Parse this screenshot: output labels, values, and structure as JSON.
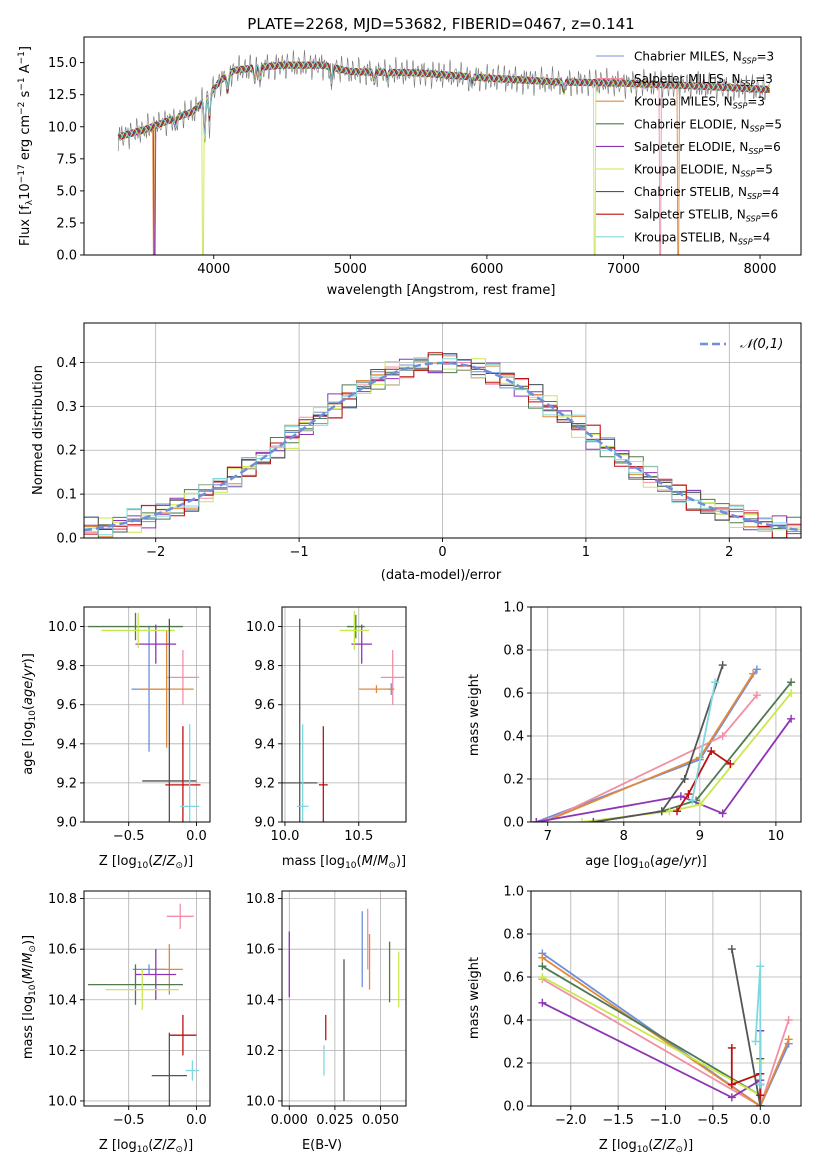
{
  "colors": {
    "Chabrier MILES": "#6f8fdc",
    "Salpeter MILES": "#f28fa5",
    "Kroupa MILES": "#e08a3c",
    "Chabrier ELODIE": "#4f7a4f",
    "Salpeter ELODIE": "#8e35b5",
    "Kroupa ELODIE": "#c9e84e",
    "Chabrier STELIB": "#555555",
    "Salpeter STELIB": "#bb1111",
    "Kroupa STELIB": "#7fd8e0",
    "gauss": "#6f8fdc"
  },
  "chart_data": [
    {
      "id": "spectrum",
      "type": "line",
      "title": "PLATE=2268, MJD=53682, FIBERID=0467, z=0.141",
      "xlabel": "wavelength [Angstrom, rest frame]",
      "ylabel": "Flux [f_λ10^-17 erg cm^-2 s^-1 A^-1]",
      "xlim": [
        3050,
        8300
      ],
      "ylim": [
        0,
        17
      ],
      "xticks": [
        4000,
        5000,
        6000,
        7000,
        8000
      ],
      "yticks": [
        0.0,
        2.5,
        5.0,
        7.5,
        10.0,
        12.5,
        15.0
      ],
      "legend_position": "right",
      "spectrum_range": [
        3300,
        8070
      ],
      "continuum": [
        [
          3300,
          9.2
        ],
        [
          3500,
          9.8
        ],
        [
          3650,
          10.4
        ],
        [
          3750,
          10.8
        ],
        [
          3850,
          11.2
        ],
        [
          3950,
          12.3
        ],
        [
          4050,
          13.6
        ],
        [
          4150,
          14.4
        ],
        [
          4300,
          14.6
        ],
        [
          4500,
          14.8
        ],
        [
          4800,
          14.8
        ],
        [
          5000,
          14.3
        ],
        [
          5500,
          14.2
        ],
        [
          6000,
          13.8
        ],
        [
          6500,
          13.5
        ],
        [
          7000,
          13.4
        ],
        [
          7500,
          13.2
        ],
        [
          8070,
          12.9
        ]
      ],
      "series": [
        {
          "name": "Chabrier MILES, N_SSP=3"
        },
        {
          "name": "Salpeter MILES, N_SSP=3"
        },
        {
          "name": "Kroupa MILES, N_SSP=3"
        },
        {
          "name": "Chabrier ELODIE, N_SSP=5"
        },
        {
          "name": "Salpeter ELODIE, N_SSP=6"
        },
        {
          "name": "Kroupa ELODIE, N_SSP=5"
        },
        {
          "name": "Chabrier STELIB, N_SSP=4"
        },
        {
          "name": "Salpeter STELIB, N_SSP=6"
        },
        {
          "name": "Kroupa STELIB, N_SSP=4"
        }
      ]
    },
    {
      "id": "hist",
      "type": "bar",
      "xlabel": "(data-model)/error",
      "ylabel": "Normed distribution",
      "xlim": [
        -2.5,
        2.5
      ],
      "ylim": [
        0,
        0.49
      ],
      "xticks": [
        -2,
        -1,
        0,
        1,
        2
      ],
      "yticks": [
        0.0,
        0.1,
        0.2,
        0.3,
        0.4
      ],
      "grid": true,
      "legend": "N(0,1)",
      "legend_position": "top-right",
      "bin_width": 0.1
    },
    {
      "id": "age_Z",
      "type": "scatter",
      "xlabel": "Z [log10(Z/Z⊙)]",
      "ylabel": "age [log10(age/yr)]",
      "xlim": [
        -0.83,
        0.1
      ],
      "ylim": [
        9.0,
        10.1
      ],
      "xticks": [
        -0.5,
        0.0
      ],
      "yticks": [
        9.0,
        9.2,
        9.4,
        9.6,
        9.8,
        10.0
      ],
      "grid": true,
      "points": [
        {
          "model": "Chabrier MILES",
          "x": -0.35,
          "y": 9.68,
          "xerr": 0.13,
          "yerr": 0.32
        },
        {
          "model": "Salpeter MILES",
          "x": -0.1,
          "y": 9.74,
          "xerr": 0.12,
          "yerr": 0.14
        },
        {
          "model": "Kroupa MILES",
          "x": -0.22,
          "y": 9.68,
          "xerr": 0.2,
          "yerr": 0.3
        },
        {
          "model": "Chabrier ELODIE",
          "x": -0.45,
          "y": 10.0,
          "xerr": 0.35,
          "yerr": 0.07
        },
        {
          "model": "Salpeter ELODIE",
          "x": -0.3,
          "y": 9.91,
          "xerr": 0.15,
          "yerr": 0.1
        },
        {
          "model": "Kroupa ELODIE",
          "x": -0.43,
          "y": 9.98,
          "xerr": 0.27,
          "yerr": 0.09
        },
        {
          "model": "Chabrier STELIB",
          "x": -0.2,
          "y": 9.21,
          "xerr": 0.2,
          "yerr": 0.83
        },
        {
          "model": "Salpeter STELIB",
          "x": -0.1,
          "y": 9.19,
          "xerr": 0.13,
          "yerr": 0.3
        },
        {
          "model": "Kroupa STELIB",
          "x": -0.05,
          "y": 9.08,
          "xerr": 0.07,
          "yerr": 0.42
        }
      ]
    },
    {
      "id": "age_mass",
      "type": "scatter",
      "xlabel": "mass [log10(M/M⊙)]",
      "ylabel": "",
      "xlim": [
        9.98,
        10.82
      ],
      "ylim": [
        9.0,
        10.1
      ],
      "xticks": [
        10.0,
        10.5
      ],
      "yticks": [
        9.0,
        9.2,
        9.4,
        9.6,
        9.8,
        10.0
      ],
      "grid": true,
      "points": [
        {
          "model": "Chabrier MILES",
          "x": 10.72,
          "y": 9.68,
          "xerr": 0.02,
          "yerr": 0.03
        },
        {
          "model": "Salpeter MILES",
          "x": 10.73,
          "y": 9.74,
          "xerr": 0.08,
          "yerr": 0.14
        },
        {
          "model": "Kroupa MILES",
          "x": 10.62,
          "y": 9.68,
          "xerr": 0.12,
          "yerr": 0.02
        },
        {
          "model": "Chabrier ELODIE",
          "x": 10.48,
          "y": 10.0,
          "xerr": 0.06,
          "yerr": 0.06
        },
        {
          "model": "Salpeter ELODIE",
          "x": 10.52,
          "y": 9.91,
          "xerr": 0.07,
          "yerr": 0.1
        },
        {
          "model": "Kroupa ELODIE",
          "x": 10.47,
          "y": 9.98,
          "xerr": 0.1,
          "yerr": 0.1
        },
        {
          "model": "Chabrier STELIB",
          "x": 10.1,
          "y": 9.2,
          "xerr": 0.12,
          "yerr": 0.84
        },
        {
          "model": "Salpeter STELIB",
          "x": 10.26,
          "y": 9.19,
          "xerr": 0.03,
          "yerr": 0.3
        },
        {
          "model": "Kroupa STELIB",
          "x": 10.12,
          "y": 9.08,
          "xerr": 0.04,
          "yerr": 0.42
        }
      ]
    },
    {
      "id": "mw_age",
      "type": "line",
      "xlabel": "age [log10(age/yr)]",
      "ylabel": "mass weight",
      "xlim": [
        6.78,
        10.33
      ],
      "ylim": [
        0,
        1
      ],
      "xticks": [
        7,
        8,
        9,
        10
      ],
      "yticks": [
        0.0,
        0.2,
        0.4,
        0.6,
        0.8,
        1.0
      ],
      "grid": true,
      "series": [
        {
          "model": "Chabrier MILES",
          "x": [
            6.85,
            9.0,
            9.75
          ],
          "y": [
            0.0,
            0.29,
            0.71
          ]
        },
        {
          "model": "Salpeter MILES",
          "x": [
            6.95,
            9.3,
            9.75
          ],
          "y": [
            0.0,
            0.4,
            0.59
          ]
        },
        {
          "model": "Kroupa MILES",
          "x": [
            6.95,
            9.0,
            9.7
          ],
          "y": [
            0.0,
            0.3,
            0.69
          ]
        },
        {
          "model": "Chabrier ELODIE",
          "x": [
            7.6,
            8.5,
            8.95,
            10.2
          ],
          "y": [
            0.0,
            0.05,
            0.1,
            0.65
          ]
        },
        {
          "model": "Salpeter ELODIE",
          "x": [
            6.85,
            8.75,
            9.3,
            10.2
          ],
          "y": [
            0.0,
            0.12,
            0.04,
            0.48
          ]
        },
        {
          "model": "Kroupa ELODIE",
          "x": [
            7.45,
            8.6,
            9.0,
            10.2
          ],
          "y": [
            0.0,
            0.05,
            0.08,
            0.6
          ]
        },
        {
          "model": "Chabrier STELIB",
          "x": [
            7.6,
            8.5,
            8.8,
            9.3
          ],
          "y": [
            0.0,
            0.05,
            0.2,
            0.73
          ]
        },
        {
          "model": "Salpeter STELIB",
          "x": [
            8.7,
            8.85,
            9.15,
            9.4
          ],
          "y": [
            0.05,
            0.13,
            0.33,
            0.27
          ]
        },
        {
          "model": "Kroupa STELIB",
          "x": [
            8.9,
            9.2
          ],
          "y": [
            0.1,
            0.65
          ]
        }
      ]
    },
    {
      "id": "mass_Z",
      "type": "scatter",
      "xlabel": "Z [log10(Z/Z⊙)]",
      "ylabel": "mass [log10(M/M⊙)]",
      "xlim": [
        -0.83,
        0.1
      ],
      "ylim": [
        9.98,
        10.83
      ],
      "xticks": [
        -0.5,
        0.0
      ],
      "yticks": [
        10.0,
        10.2,
        10.4,
        10.6,
        10.8
      ],
      "grid": true,
      "points": [
        {
          "model": "Chabrier MILES",
          "x": -0.35,
          "y": 10.52,
          "xerr": 0.12,
          "yerr": 0.02
        },
        {
          "model": "Salpeter MILES",
          "x": -0.12,
          "y": 10.73,
          "xerr": 0.1,
          "yerr": 0.05
        },
        {
          "model": "Kroupa MILES",
          "x": -0.2,
          "y": 10.52,
          "xerr": 0.1,
          "yerr": 0.1
        },
        {
          "model": "Chabrier ELODIE",
          "x": -0.45,
          "y": 10.46,
          "xerr": 0.35,
          "yerr": 0.08
        },
        {
          "model": "Salpeter ELODIE",
          "x": -0.3,
          "y": 10.5,
          "xerr": 0.15,
          "yerr": 0.1
        },
        {
          "model": "Kroupa ELODIE",
          "x": -0.4,
          "y": 10.44,
          "xerr": 0.27,
          "yerr": 0.08
        },
        {
          "model": "Chabrier STELIB",
          "x": -0.2,
          "y": 10.1,
          "xerr": 0.13,
          "yerr": 0.17
        },
        {
          "model": "Salpeter STELIB",
          "x": -0.1,
          "y": 10.26,
          "xerr": 0.1,
          "yerr": 0.08
        },
        {
          "model": "Kroupa STELIB",
          "x": -0.03,
          "y": 10.12,
          "xerr": 0.05,
          "yerr": 0.04
        }
      ]
    },
    {
      "id": "mass_ebv",
      "type": "scatter",
      "xlabel": "E(B-V)",
      "ylabel": "",
      "xlim": [
        -0.004,
        0.064
      ],
      "ylim": [
        9.98,
        10.83
      ],
      "xticks": [
        0.0,
        0.025,
        0.05
      ],
      "xticklabels": [
        "0.000",
        "0.025",
        "0.050"
      ],
      "yticks": [
        10.0,
        10.2,
        10.4,
        10.6,
        10.8
      ],
      "grid": true,
      "points": [
        {
          "model": "Chabrier MILES",
          "x": 0.04,
          "y": 10.6,
          "yerr": 0.15
        },
        {
          "model": "Salpeter MILES",
          "x": 0.043,
          "y": 10.64,
          "yerr": 0.12
        },
        {
          "model": "Kroupa MILES",
          "x": 0.044,
          "y": 10.55,
          "yerr": 0.11
        },
        {
          "model": "Chabrier ELODIE",
          "x": 0.055,
          "y": 10.51,
          "yerr": 0.12
        },
        {
          "model": "Salpeter ELODIE",
          "x": 0.0,
          "y": 10.54,
          "yerr": 0.13
        },
        {
          "model": "Kroupa ELODIE",
          "x": 0.06,
          "y": 10.48,
          "yerr": 0.11
        },
        {
          "model": "Chabrier STELIB",
          "x": 0.03,
          "y": 10.28,
          "yerr": 0.28
        },
        {
          "model": "Salpeter STELIB",
          "x": 0.02,
          "y": 10.29,
          "yerr": 0.05
        },
        {
          "model": "Kroupa STELIB",
          "x": 0.019,
          "y": 10.16,
          "yerr": 0.06
        }
      ]
    },
    {
      "id": "mw_Z",
      "type": "line",
      "xlabel": "Z [log10(Z/Z⊙)]",
      "ylabel": "mass weight",
      "xlim": [
        -2.42,
        0.43
      ],
      "ylim": [
        0,
        1
      ],
      "xticks": [
        -2.0,
        -1.5,
        -1.0,
        -0.5,
        0.0
      ],
      "yticks": [
        0.0,
        0.2,
        0.4,
        0.6,
        0.8,
        1.0
      ],
      "grid": true,
      "series": [
        {
          "model": "Chabrier MILES",
          "x": [
            -2.3,
            0.0,
            0.3
          ],
          "y": [
            0.71,
            0.0,
            0.29
          ]
        },
        {
          "model": "Salpeter MILES",
          "x": [
            -2.3,
            0.0,
            0.3
          ],
          "y": [
            0.59,
            0.0,
            0.4
          ]
        },
        {
          "model": "Kroupa MILES",
          "x": [
            -2.3,
            0.0,
            0.3
          ],
          "y": [
            0.69,
            0.0,
            0.31
          ]
        },
        {
          "model": "Chabrier ELODIE",
          "x": [
            -2.3,
            0.0,
            0.0
          ],
          "y": [
            0.65,
            0.05,
            0.1
          ]
        },
        {
          "model": "Salpeter ELODIE",
          "x": [
            -2.3,
            -0.3,
            0.0,
            0.0
          ],
          "y": [
            0.48,
            0.04,
            0.12,
            0.35
          ]
        },
        {
          "model": "Kroupa ELODIE",
          "x": [
            -2.3,
            0.0,
            0.0
          ],
          "y": [
            0.6,
            0.05,
            0.2
          ]
        },
        {
          "model": "Chabrier STELIB",
          "x": [
            -0.3,
            0.0,
            0.0
          ],
          "y": [
            0.73,
            0.0,
            0.22
          ]
        },
        {
          "model": "Salpeter STELIB",
          "x": [
            -0.3,
            -0.3,
            0.0,
            0.0
          ],
          "y": [
            0.27,
            0.1,
            0.15,
            0.05
          ]
        },
        {
          "model": "Kroupa STELIB",
          "x": [
            -0.05,
            0.0,
            0.0
          ],
          "y": [
            0.3,
            0.65,
            0.1
          ]
        }
      ]
    }
  ]
}
